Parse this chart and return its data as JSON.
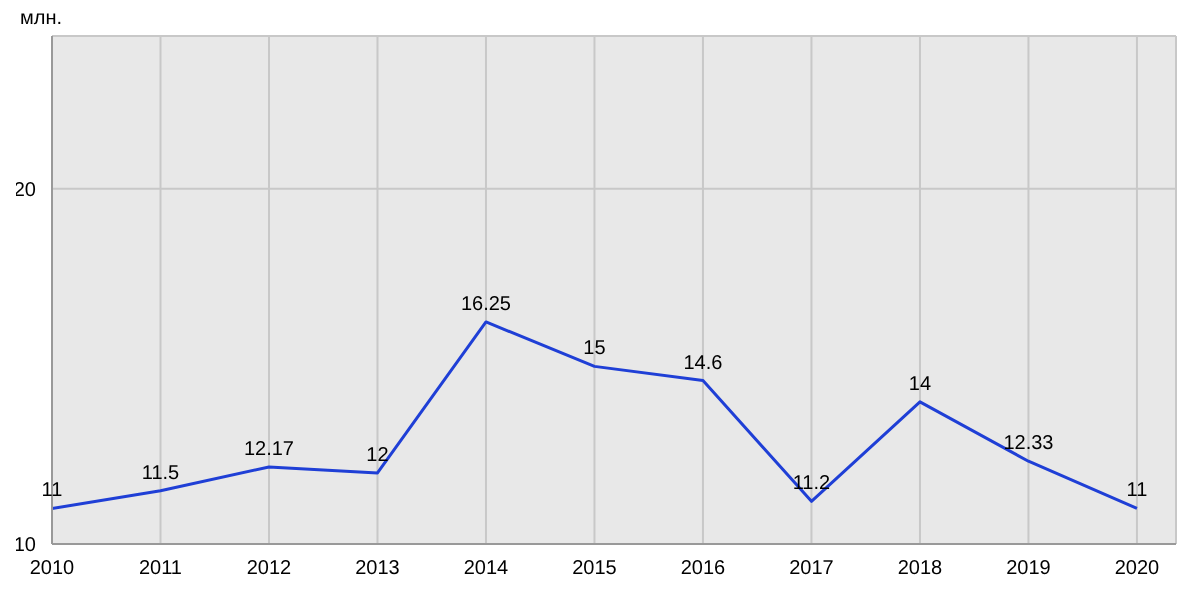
{
  "chart_data": {
    "type": "line",
    "ylabel": "млн.",
    "x": [
      2010,
      2011,
      2012,
      2013,
      2014,
      2015,
      2016,
      2017,
      2018,
      2019,
      2020
    ],
    "series": [
      {
        "color": "#1f3fd6",
        "values": [
          11,
          11.5,
          12.17,
          12,
          16.25,
          15,
          14.6,
          11.2,
          14,
          12.33,
          11
        ]
      }
    ],
    "xlim": [
      2010,
      2020.36
    ],
    "xticks": [
      2010,
      2011,
      2012,
      2013,
      2014,
      2015,
      2016,
      2017,
      2018,
      2019,
      2020
    ],
    "ylim": [
      10,
      24.3
    ],
    "yticks": [
      10,
      20
    ],
    "grid": true,
    "data_labels": true,
    "marker": "none",
    "line_style": "solid",
    "legend": false
  }
}
